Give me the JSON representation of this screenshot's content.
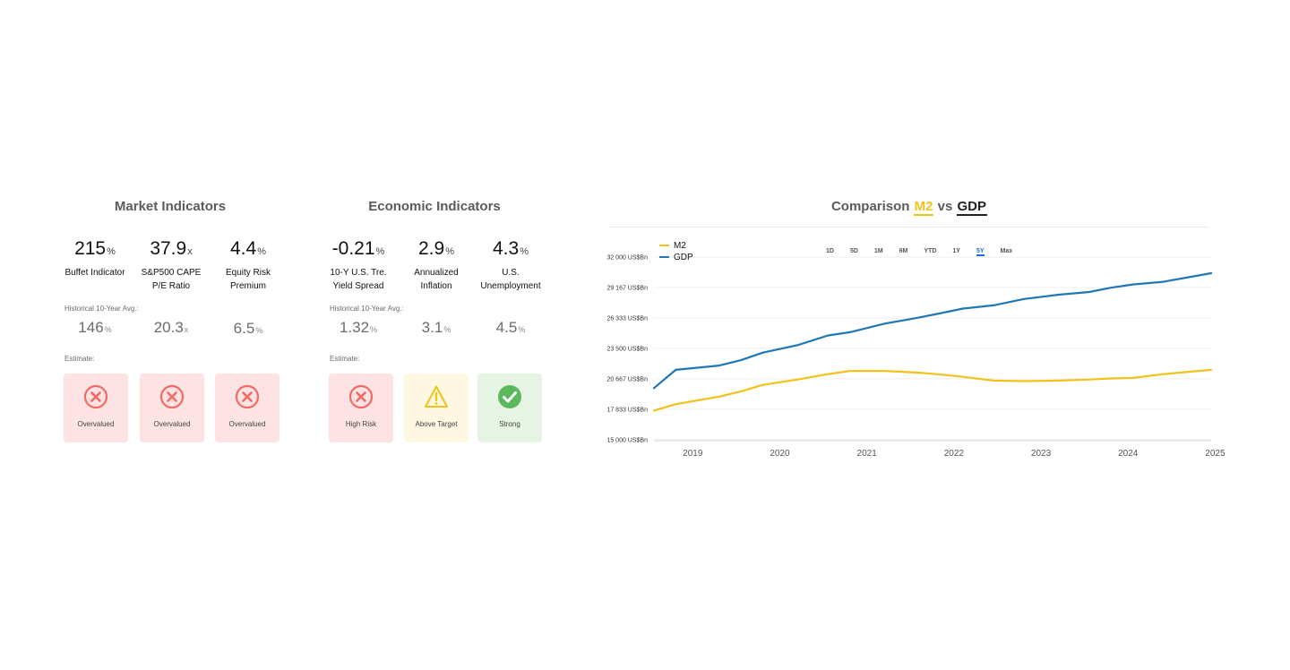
{
  "market": {
    "title": "Market Indicators",
    "indicators": [
      {
        "value": "215",
        "unit": "%",
        "label1": "Buffet Indicator",
        "label2": ""
      },
      {
        "value": "37.9",
        "unit": "x",
        "label1": "S&P500 CAPE",
        "label2": "P/E Ratio"
      },
      {
        "value": "4.4",
        "unit": "%",
        "label1": "Equity Risk",
        "label2": "Premium"
      }
    ],
    "hist_label": "Historical 10-Year Avg.:",
    "hist": [
      {
        "value": "146",
        "unit": "%"
      },
      {
        "value": "20.3",
        "unit": "x"
      },
      {
        "value": "6.5",
        "unit": "%"
      }
    ],
    "estimate_label": "Estimate:",
    "estimates": [
      {
        "label": "Overvalued",
        "icon": "x-circle-icon",
        "color": "#f26a63"
      },
      {
        "label": "Overvalued",
        "icon": "x-circle-icon",
        "color": "#f26a63"
      },
      {
        "label": "Overvalued",
        "icon": "x-circle-icon",
        "color": "#f26a63"
      }
    ]
  },
  "economic": {
    "title": "Economic Indicators",
    "indicators": [
      {
        "value": "-0.21",
        "unit": "%",
        "label1": "10-Y U.S. Tre.",
        "label2": "Yield Spread"
      },
      {
        "value": "2.9",
        "unit": "%",
        "label1": "Annualized",
        "label2": "Inflation"
      },
      {
        "value": "4.3",
        "unit": "%",
        "label1": "U.S.",
        "label2": "Unemployment"
      }
    ],
    "hist_label": "Historical 10-Year Avg.:",
    "hist": [
      {
        "value": "1.32",
        "unit": "%"
      },
      {
        "value": "3.1",
        "unit": "%"
      },
      {
        "value": "4.5",
        "unit": "%"
      }
    ],
    "estimate_label": "Estimate:",
    "estimates": [
      {
        "label": "High Risk",
        "icon": "x-circle-icon",
        "color": "#f26a63"
      },
      {
        "label": "Above Target",
        "icon": "warning-triangle-icon",
        "color": "#f0c419"
      },
      {
        "label": "Strong",
        "icon": "check-circle-icon",
        "color": "#5cb85c"
      }
    ]
  },
  "comparison": {
    "title_prefix": "Comparison",
    "title_m2": "M2",
    "title_vs": "vs",
    "title_gdp": "GDP",
    "ranges": [
      "1D",
      "5D",
      "1M",
      "6M",
      "YTD",
      "1Y",
      "5Y",
      "Max"
    ],
    "active_range": "5Y"
  },
  "chart_data": {
    "type": "line",
    "title": "Comparison M2 vs GDP",
    "legend_placement": "top-left",
    "grid": true,
    "y_unit": "US$Bn",
    "y_ticks": [
      "32 000 US$Bn",
      "29 167 US$Bn",
      "26 333 US$Bn",
      "23 500 US$Bn",
      "20 667 US$Bn",
      "17 833 US$Bn",
      "15 000 US$Bn"
    ],
    "y_tick_values": [
      32000,
      29167,
      26333,
      23500,
      20667,
      17833,
      15000
    ],
    "x_ticks": [
      "2019",
      "2020",
      "2021",
      "2022",
      "2023",
      "2024",
      "2025"
    ],
    "x_tick_values": [
      2019.0,
      2020.0,
      2021.0,
      2022.0,
      2023.0,
      2024.0,
      2025.0
    ],
    "xlim": [
      2018.75,
      2025.15
    ],
    "ylim": [
      14900,
      32000
    ],
    "series": [
      {
        "name": "M2",
        "color": "#f2c21b",
        "x": [
          2018.75,
          2019.0,
          2019.5,
          2019.75,
          2020.0,
          2020.4,
          2020.75,
          2021.0,
          2021.4,
          2021.75,
          2022.0,
          2022.3,
          2022.65,
          2023.0,
          2023.4,
          2023.75,
          2024.0,
          2024.25,
          2024.6,
          2025.15
        ],
        "y": [
          17700,
          18300,
          19000,
          19500,
          20100,
          20600,
          21100,
          21400,
          21400,
          21250,
          21100,
          20850,
          20500,
          20450,
          20500,
          20600,
          20700,
          20750,
          21100,
          21500
        ]
      },
      {
        "name": "GDP",
        "color": "#1f77b4",
        "x": [
          2018.75,
          2019.0,
          2019.5,
          2019.75,
          2020.0,
          2020.4,
          2020.75,
          2021.0,
          2021.4,
          2021.75,
          2022.0,
          2022.3,
          2022.65,
          2023.0,
          2023.4,
          2023.75,
          2024.0,
          2024.25,
          2024.6,
          2025.15
        ],
        "y": [
          19800,
          21500,
          21900,
          22400,
          23100,
          23800,
          24700,
          25000,
          25800,
          26300,
          26700,
          27200,
          27500,
          28100,
          28500,
          28750,
          29150,
          29450,
          29700,
          30500
        ]
      }
    ]
  }
}
